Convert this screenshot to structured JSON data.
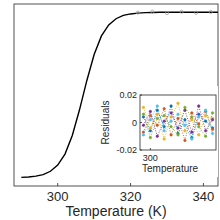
{
  "chart_data": [
    {
      "type": "line",
      "x_label": "Temperature (K)",
      "xlim": [
        288,
        344
      ],
      "xticks": [
        300,
        320,
        340
      ],
      "ylim": [
        -0.05,
        1.05
      ],
      "tick_labels": "x",
      "series": [
        {
          "color": "#000000",
          "x": [
            290,
            292,
            294,
            296,
            298,
            300,
            302,
            304,
            306,
            308,
            310,
            312,
            314,
            316,
            318,
            320,
            322,
            324,
            326,
            328,
            330,
            332,
            334,
            336,
            338,
            340,
            342,
            344
          ],
          "values": [
            0.0023,
            0.0047,
            0.0096,
            0.019,
            0.039,
            0.076,
            0.143,
            0.255,
            0.412,
            0.588,
            0.745,
            0.857,
            0.924,
            0.961,
            0.981,
            0.99,
            0.995,
            0.998,
            0.999,
            1,
            1,
            1,
            1,
            1,
            1,
            1,
            1,
            1
          ]
        },
        {
          "type": "scatter",
          "color": "#999999",
          "marker": "circle",
          "x": [
            322,
            326,
            330,
            334,
            338,
            342
          ],
          "values": [
            0.998,
            1.004,
            0.995,
            1.003,
            0.997,
            1.002
          ]
        }
      ]
    },
    {
      "type": "line",
      "y_label": "Residuals",
      "x_label": "Temperature",
      "xlim": [
        297,
        319
      ],
      "xticks": [
        300
      ],
      "ylim": [
        -0.02,
        0.02
      ],
      "yticks": [
        -0.02,
        0,
        0.02
      ],
      "line_style": "dotted",
      "marker": "circle",
      "x": [
        298,
        300,
        302,
        304,
        306,
        308,
        310,
        312,
        314,
        316,
        318
      ],
      "series": [
        {
          "color": "#0072BD",
          "values": [
            0.004,
            -0.006,
            0.009,
            -0.003,
            0.012,
            -0.008,
            0.002,
            -0.011,
            0.006,
            0.001,
            -0.004
          ]
        },
        {
          "color": "#D95319",
          "values": [
            -0.007,
            0.005,
            -0.002,
            0.01,
            -0.009,
            0.003,
            -0.013,
            0.007,
            -0.001,
            0.008,
            -0.005
          ]
        },
        {
          "color": "#EDB120",
          "values": [
            0.011,
            -0.004,
            0.006,
            -0.012,
            0.004,
            0.014,
            -0.006,
            0.002,
            -0.009,
            0.005,
            0.003
          ]
        },
        {
          "color": "#7E2F8E",
          "values": [
            -0.002,
            0.008,
            -0.01,
            0.001,
            0.007,
            -0.004,
            0.009,
            -0.007,
            0.012,
            -0.006,
            0.002
          ]
        },
        {
          "color": "#77AC30",
          "values": [
            0.006,
            -0.011,
            0.003,
            0.005,
            -0.003,
            -0.009,
            0.011,
            0.004,
            -0.003,
            -0.01,
            0.007
          ]
        },
        {
          "color": "#4DBEEE",
          "values": [
            -0.009,
            0.002,
            0.012,
            -0.006,
            0.001,
            0.006,
            -0.002,
            -0.012,
            0.004,
            0.009,
            -0.008
          ]
        }
      ]
    }
  ]
}
